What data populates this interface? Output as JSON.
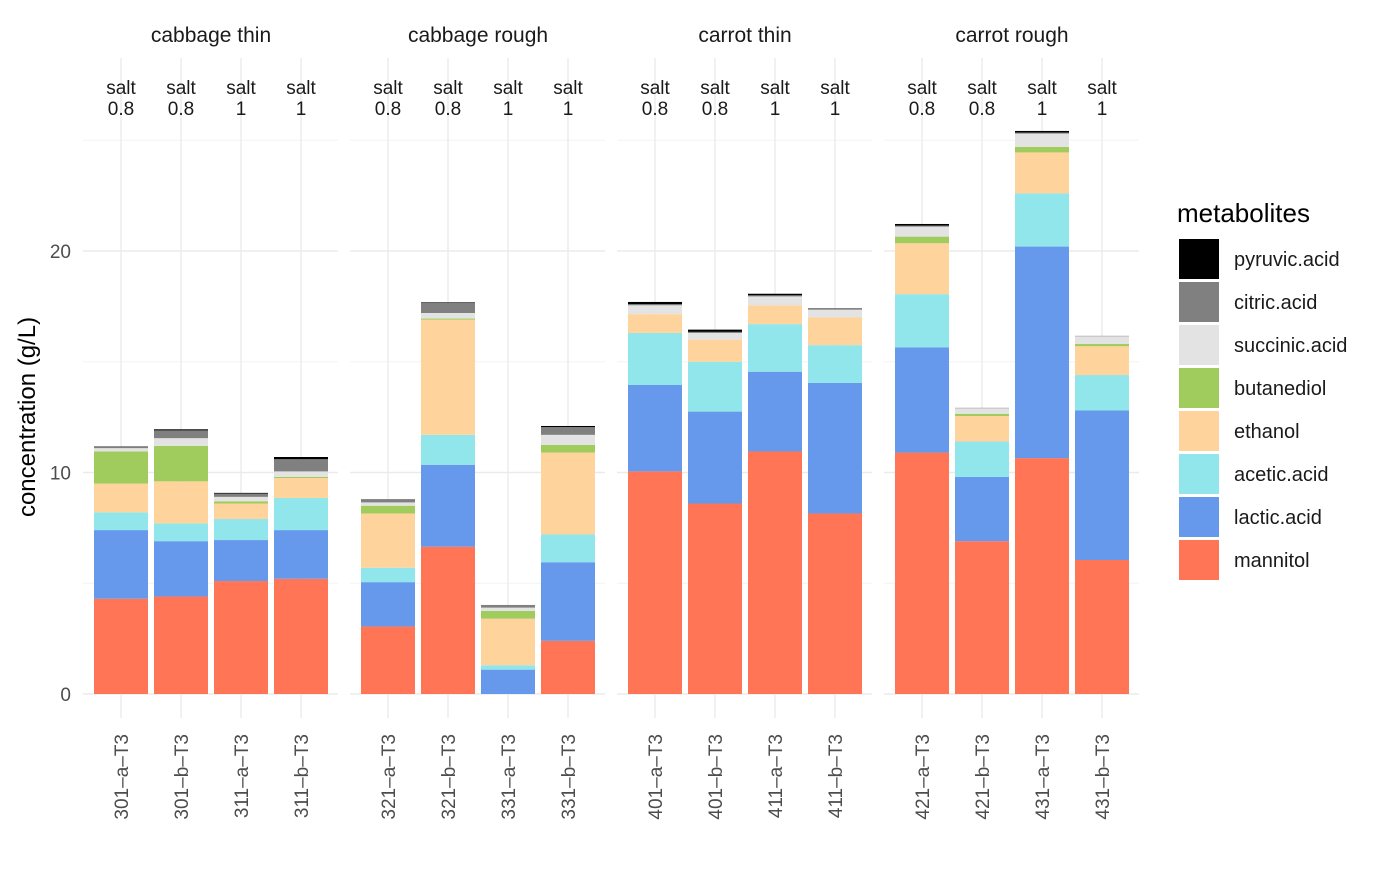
{
  "chart_data": {
    "type": "bar",
    "stacked": true,
    "ylabel": "concentration (g/L)",
    "ylim": [
      0,
      25.5
    ],
    "yticks": [
      0,
      10,
      20
    ],
    "grid": true,
    "legend": {
      "title": "metabolites",
      "placement": "right",
      "order": [
        "pyruvic.acid",
        "citric.acid",
        "succinic.acid",
        "butanediol",
        "ethanol",
        "acetic.acid",
        "lactic.acid",
        "mannitol"
      ]
    },
    "colors": {
      "mannitol": "#FF7556",
      "lactic.acid": "#6699EB",
      "acetic.acid": "#91E6EC",
      "ethanol": "#FFD49C",
      "butanediol": "#A0CC5D",
      "succinic.acid": "#E3E3E3",
      "citric.acid": "#808080",
      "pyruvic.acid": "#000000"
    },
    "stack_order": [
      "mannitol",
      "lactic.acid",
      "acetic.acid",
      "ethanol",
      "butanediol",
      "succinic.acid",
      "citric.acid",
      "pyruvic.acid"
    ],
    "facets": [
      {
        "title": "cabbage thin",
        "samples": [
          {
            "id": "301–a–T3",
            "salt_label": "salt",
            "salt_value": "0.8",
            "values": {
              "mannitol": 4.3,
              "lactic.acid": 3.1,
              "acetic.acid": 0.8,
              "ethanol": 1.3,
              "butanediol": 1.45,
              "succinic.acid": 0.15,
              "citric.acid": 0.05,
              "pyruvic.acid": 0.02
            }
          },
          {
            "id": "301–b–T3",
            "salt_label": "salt",
            "salt_value": "0.8",
            "values": {
              "mannitol": 4.4,
              "lactic.acid": 2.5,
              "acetic.acid": 0.8,
              "ethanol": 1.9,
              "butanediol": 1.6,
              "succinic.acid": 0.35,
              "citric.acid": 0.35,
              "pyruvic.acid": 0.05
            }
          },
          {
            "id": "311–a–T3",
            "salt_label": "salt",
            "salt_value": "1",
            "values": {
              "mannitol": 5.1,
              "lactic.acid": 1.85,
              "acetic.acid": 0.95,
              "ethanol": 0.7,
              "butanediol": 0.1,
              "succinic.acid": 0.2,
              "citric.acid": 0.15,
              "pyruvic.acid": 0.03
            }
          },
          {
            "id": "311–b–T3",
            "salt_label": "salt",
            "salt_value": "1",
            "values": {
              "mannitol": 5.2,
              "lactic.acid": 2.2,
              "acetic.acid": 1.45,
              "ethanol": 0.9,
              "butanediol": 0.05,
              "succinic.acid": 0.25,
              "citric.acid": 0.55,
              "pyruvic.acid": 0.1
            }
          }
        ]
      },
      {
        "title": "cabbage rough",
        "samples": [
          {
            "id": "321–a–T3",
            "salt_label": "salt",
            "salt_value": "0.8",
            "values": {
              "mannitol": 3.05,
              "lactic.acid": 2.0,
              "acetic.acid": 0.65,
              "ethanol": 2.45,
              "butanediol": 0.35,
              "succinic.acid": 0.15,
              "citric.acid": 0.15,
              "pyruvic.acid": 0.0
            }
          },
          {
            "id": "321–b–T3",
            "salt_label": "salt",
            "salt_value": "0.8",
            "values": {
              "mannitol": 6.65,
              "lactic.acid": 3.7,
              "acetic.acid": 1.35,
              "ethanol": 5.2,
              "butanediol": 0.05,
              "succinic.acid": 0.25,
              "citric.acid": 0.45,
              "pyruvic.acid": 0.03
            }
          },
          {
            "id": "331–a–T3",
            "salt_label": "salt",
            "salt_value": "1",
            "values": {
              "mannitol": 0.0,
              "lactic.acid": 1.1,
              "acetic.acid": 0.2,
              "ethanol": 2.1,
              "butanediol": 0.35,
              "succinic.acid": 0.15,
              "citric.acid": 0.12,
              "pyruvic.acid": 0.0
            }
          },
          {
            "id": "331–b–T3",
            "salt_label": "salt",
            "salt_value": "1",
            "values": {
              "mannitol": 2.4,
              "lactic.acid": 3.55,
              "acetic.acid": 1.25,
              "ethanol": 3.7,
              "butanediol": 0.35,
              "succinic.acid": 0.45,
              "citric.acid": 0.35,
              "pyruvic.acid": 0.05
            }
          }
        ]
      },
      {
        "title": "carrot thin",
        "samples": [
          {
            "id": "401–a–T3",
            "salt_label": "salt",
            "salt_value": "0.8",
            "values": {
              "mannitol": 10.05,
              "lactic.acid": 3.9,
              "acetic.acid": 2.35,
              "ethanol": 0.85,
              "butanediol": 0.0,
              "succinic.acid": 0.4,
              "citric.acid": 0.05,
              "pyruvic.acid": 0.1
            }
          },
          {
            "id": "401–b–T3",
            "salt_label": "salt",
            "salt_value": "0.8",
            "values": {
              "mannitol": 8.6,
              "lactic.acid": 4.15,
              "acetic.acid": 2.25,
              "ethanol": 1.0,
              "butanediol": 0.0,
              "succinic.acid": 0.3,
              "citric.acid": 0.05,
              "pyruvic.acid": 0.1
            }
          },
          {
            "id": "411–a–T3",
            "salt_label": "salt",
            "salt_value": "1",
            "values": {
              "mannitol": 10.95,
              "lactic.acid": 3.6,
              "acetic.acid": 2.15,
              "ethanol": 0.85,
              "butanediol": 0.0,
              "succinic.acid": 0.4,
              "citric.acid": 0.05,
              "pyruvic.acid": 0.07
            }
          },
          {
            "id": "411–b–T3",
            "salt_label": "salt",
            "salt_value": "1",
            "values": {
              "mannitol": 8.15,
              "lactic.acid": 5.9,
              "acetic.acid": 1.7,
              "ethanol": 1.25,
              "butanediol": 0.0,
              "succinic.acid": 0.35,
              "citric.acid": 0.04,
              "pyruvic.acid": 0.02
            }
          }
        ]
      },
      {
        "title": "carrot rough",
        "samples": [
          {
            "id": "421–a–T3",
            "salt_label": "salt",
            "salt_value": "0.8",
            "values": {
              "mannitol": 10.9,
              "lactic.acid": 4.75,
              "acetic.acid": 2.4,
              "ethanol": 2.3,
              "butanediol": 0.3,
              "succinic.acid": 0.45,
              "citric.acid": 0.05,
              "pyruvic.acid": 0.07
            }
          },
          {
            "id": "421–b–T3",
            "salt_label": "salt",
            "salt_value": "0.8",
            "values": {
              "mannitol": 6.9,
              "lactic.acid": 2.9,
              "acetic.acid": 1.6,
              "ethanol": 1.15,
              "butanediol": 0.1,
              "succinic.acid": 0.25,
              "citric.acid": 0.02,
              "pyruvic.acid": 0.0
            }
          },
          {
            "id": "431–a–T3",
            "salt_label": "salt",
            "salt_value": "1",
            "values": {
              "mannitol": 10.65,
              "lactic.acid": 9.55,
              "acetic.acid": 2.4,
              "ethanol": 1.85,
              "butanediol": 0.25,
              "succinic.acid": 0.6,
              "citric.acid": 0.05,
              "pyruvic.acid": 0.07
            }
          },
          {
            "id": "431–b–T3",
            "salt_label": "salt",
            "salt_value": "1",
            "values": {
              "mannitol": 6.05,
              "lactic.acid": 6.75,
              "acetic.acid": 1.6,
              "ethanol": 1.3,
              "butanediol": 0.1,
              "succinic.acid": 0.35,
              "citric.acid": 0.02,
              "pyruvic.acid": 0.0
            }
          }
        ]
      }
    ]
  }
}
